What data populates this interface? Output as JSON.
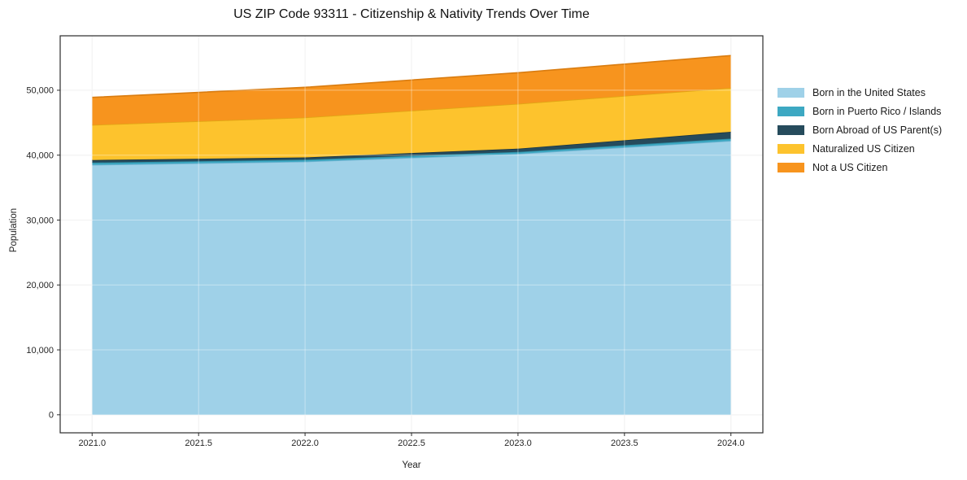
{
  "title": "US ZIP Code 93311 - Citizenship & Nativity Trends Over Time",
  "axes": {
    "x_label": "Year",
    "y_label": "Population",
    "x_ticks": [
      {
        "value": 2021.0,
        "label": "2021.0"
      },
      {
        "value": 2021.5,
        "label": "2021.5"
      },
      {
        "value": 2022.0,
        "label": "2022.0"
      },
      {
        "value": 2022.5,
        "label": "2022.5"
      },
      {
        "value": 2023.0,
        "label": "2023.0"
      },
      {
        "value": 2023.5,
        "label": "2023.5"
      },
      {
        "value": 2024.0,
        "label": "2024.0"
      }
    ],
    "y_ticks": [
      {
        "value": 0,
        "label": "0"
      },
      {
        "value": 10000,
        "label": "10,000"
      },
      {
        "value": 20000,
        "label": "20,000"
      },
      {
        "value": 30000,
        "label": "30,000"
      },
      {
        "value": 40000,
        "label": "40,000"
      },
      {
        "value": 50000,
        "label": "50,000"
      }
    ]
  },
  "legend": {
    "items": [
      {
        "label": "Born in the United States",
        "color": "#9fd1e8"
      },
      {
        "label": "Born in Puerto Rico / Islands",
        "color": "#3da8c2"
      },
      {
        "label": "Born Abroad of US Parent(s)",
        "color": "#264b5c"
      },
      {
        "label": "Naturalized US Citizen",
        "color": "#fdc32d"
      },
      {
        "label": "Not a US Citizen",
        "color": "#f7941e"
      }
    ]
  },
  "chart_data": {
    "type": "area",
    "stacked": true,
    "title": "US ZIP Code 93311 - Citizenship & Nativity Trends Over Time",
    "xlabel": "Year",
    "ylabel": "Population",
    "x": [
      2021,
      2022,
      2023,
      2024
    ],
    "series": [
      {
        "name": "Born in the United States",
        "color": "#9fd1e8",
        "edge": "#76b5d3",
        "values": [
          38500,
          39000,
          40200,
          42200
        ]
      },
      {
        "name": "Born in Puerto Rico / Islands",
        "color": "#3da8c2",
        "edge": "#2d8aa1",
        "values": [
          350,
          300,
          300,
          350
        ]
      },
      {
        "name": "Born Abroad of US Parent(s)",
        "color": "#264b5c",
        "edge": "#1a3542",
        "values": [
          400,
          350,
          500,
          1050
        ]
      },
      {
        "name": "Naturalized US Citizen",
        "color": "#fdc32d",
        "edge": "#e0a714",
        "values": [
          5400,
          6150,
          6900,
          6750
        ]
      },
      {
        "name": "Not a US Citizen",
        "color": "#f7941e",
        "edge": "#d97c10",
        "values": [
          4250,
          4650,
          4800,
          5000
        ]
      }
    ],
    "totals": [
      48900,
      50450,
      52700,
      55350
    ],
    "xlim": [
      2020.85,
      2024.15
    ],
    "ylim": [
      -2780,
      58390
    ],
    "grid": true,
    "legend_position": "right-outside",
    "grid_color": "#e9e9e9",
    "spine_color": "#2b2b2b",
    "tick_label_color": "#262626"
  }
}
